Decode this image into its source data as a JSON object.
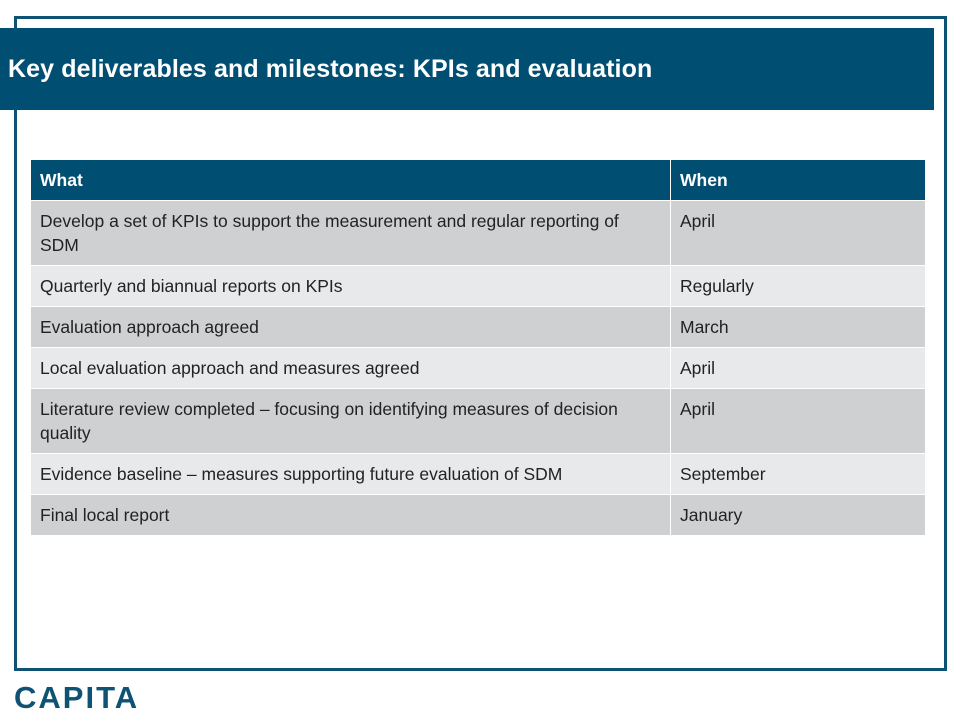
{
  "slide": {
    "title": "Key deliverables and milestones: KPIs and evaluation"
  },
  "table": {
    "headers": [
      "What",
      "When"
    ],
    "rows": [
      {
        "what": "Develop a set of KPIs to support the measurement and regular reporting of SDM",
        "when": "April"
      },
      {
        "what": "Quarterly and biannual reports on KPIs",
        "when": "Regularly"
      },
      {
        "what": "Evaluation approach agreed",
        "when": "March"
      },
      {
        "what": "Local evaluation approach and measures agreed",
        "when": "April"
      },
      {
        "what": "Literature review completed – focusing on identifying measures of decision quality",
        "when": "April"
      },
      {
        "what": "Evidence baseline – measures supporting future evaluation of SDM",
        "when": "September"
      },
      {
        "what": "Final local report",
        "when": "January"
      }
    ]
  },
  "footer": {
    "logo_text": "CAPITA"
  },
  "colors": {
    "brand_blue": "#004f72",
    "row_dark": "#cfd0d2",
    "row_light": "#e8e9eb"
  }
}
